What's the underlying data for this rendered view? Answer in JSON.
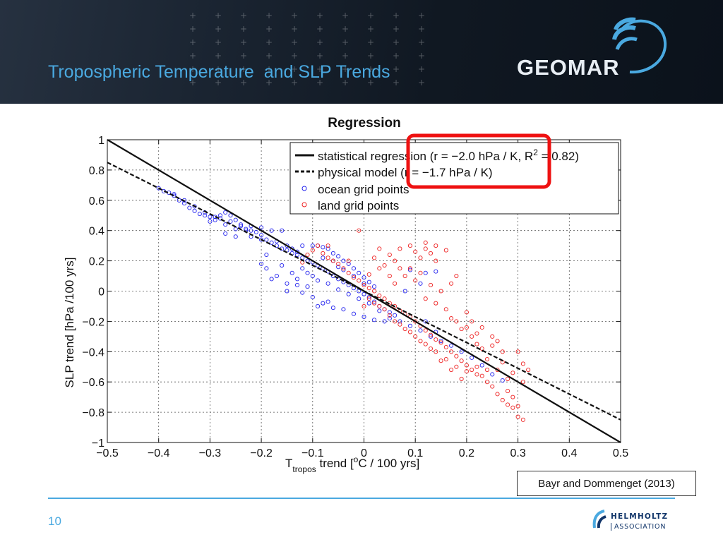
{
  "slide": {
    "title": "Tropospheric Temperature  and SLP Trends",
    "page_number": "10",
    "citation": "Bayr and Dommenget (2013)",
    "logo_text": "GEOMAR",
    "footer_logo": {
      "name": "HELMHOLTZ",
      "sub": "ASSOCIATION"
    },
    "colors": {
      "title": "#4aa9e0",
      "header_bg": "#121b26",
      "highlight": "#ee1111",
      "ocean": "#2222ee",
      "land": "#ee2222"
    }
  },
  "chart_data": {
    "type": "scatter",
    "title": "Regression",
    "xlabel_main": "T",
    "xlabel_sub": "tropos",
    "xlabel_rest": " trend [",
    "xlabel_sup": "o",
    "xlabel_end": "C / 100 yrs]",
    "ylabel": "SLP trend [hPa /100 yrs]",
    "xlim": [
      -0.5,
      0.5
    ],
    "ylim": [
      -1,
      1
    ],
    "xticks": [
      -0.5,
      -0.4,
      -0.3,
      -0.2,
      -0.1,
      0,
      0.1,
      0.2,
      0.3,
      0.4,
      0.5
    ],
    "yticks": [
      -1,
      -0.8,
      -0.6,
      -0.4,
      -0.2,
      0,
      0.2,
      0.4,
      0.6,
      0.8,
      1
    ],
    "xtick_labels": [
      "−0.5",
      "−0.4",
      "−0.3",
      "−0.2",
      "−0.1",
      "0",
      "0.1",
      "0.2",
      "0.3",
      "0.4",
      "0.5"
    ],
    "ytick_labels": [
      "−1",
      "−0.8",
      "−0.6",
      "−0.4",
      "−0.2",
      "0",
      "0.2",
      "0.4",
      "0.6",
      "0.8",
      "1"
    ],
    "grid": true,
    "lines": [
      {
        "name": "statistical regression",
        "slope": -2.0,
        "intercept": 0.0,
        "style": "solid"
      },
      {
        "name": "physical model",
        "slope": -1.7,
        "intercept": 0.0,
        "style": "dashed"
      }
    ],
    "legend": {
      "position": "top-right",
      "entries": [
        {
          "text": "statistical regression (r = −2.0 hPa / K, R",
          "sup": "2",
          "text_end": " = 0.82)",
          "kind": "solid-line"
        },
        {
          "text": "physical model (r = −1.7 hPa / K)",
          "kind": "dashed-line"
        },
        {
          "text": "ocean grid points",
          "kind": "ocean-marker"
        },
        {
          "text": "land grid points",
          "kind": "land-marker"
        }
      ]
    },
    "highlight": "red box around slope values r = −2.0 hPa / K and r = −1.7 hPa / K",
    "series": [
      {
        "name": "ocean grid points",
        "color": "#2222ee",
        "points": [
          [
            -0.4,
            0.68
          ],
          [
            -0.39,
            0.66
          ],
          [
            -0.38,
            0.65
          ],
          [
            -0.37,
            0.63
          ],
          [
            -0.36,
            0.6
          ],
          [
            -0.35,
            0.58
          ],
          [
            -0.34,
            0.55
          ],
          [
            -0.33,
            0.53
          ],
          [
            -0.32,
            0.51
          ],
          [
            -0.31,
            0.5
          ],
          [
            -0.3,
            0.49
          ],
          [
            -0.29,
            0.49
          ],
          [
            -0.28,
            0.5
          ],
          [
            -0.27,
            0.52
          ],
          [
            -0.26,
            0.5
          ],
          [
            -0.25,
            0.47
          ],
          [
            -0.24,
            0.44
          ],
          [
            -0.23,
            0.41
          ],
          [
            -0.22,
            0.4
          ],
          [
            -0.21,
            0.39
          ],
          [
            -0.2,
            0.37
          ],
          [
            -0.19,
            0.34
          ],
          [
            -0.18,
            0.32
          ],
          [
            -0.17,
            0.3
          ],
          [
            -0.16,
            0.28
          ],
          [
            -0.15,
            0.27
          ],
          [
            -0.14,
            0.25
          ],
          [
            -0.13,
            0.24
          ],
          [
            -0.12,
            0.22
          ],
          [
            -0.11,
            0.2
          ],
          [
            -0.1,
            0.19
          ],
          [
            -0.09,
            0.17
          ],
          [
            -0.08,
            0.15
          ],
          [
            -0.07,
            0.13
          ],
          [
            -0.06,
            0.1
          ],
          [
            -0.05,
            0.08
          ],
          [
            -0.04,
            0.06
          ],
          [
            -0.03,
            0.04
          ],
          [
            -0.02,
            0.02
          ],
          [
            -0.01,
            0.0
          ],
          [
            0.0,
            -0.02
          ],
          [
            0.01,
            -0.04
          ],
          [
            0.02,
            -0.07
          ],
          [
            0.03,
            -0.1
          ],
          [
            0.04,
            -0.12
          ],
          [
            0.05,
            -0.14
          ],
          [
            0.06,
            -0.16
          ],
          [
            -0.37,
            0.64
          ],
          [
            -0.35,
            0.6
          ],
          [
            -0.33,
            0.56
          ],
          [
            -0.31,
            0.52
          ],
          [
            -0.29,
            0.47
          ],
          [
            -0.27,
            0.44
          ],
          [
            -0.25,
            0.41
          ],
          [
            -0.23,
            0.4
          ],
          [
            -0.3,
            0.46
          ],
          [
            -0.28,
            0.48
          ],
          [
            -0.26,
            0.46
          ],
          [
            -0.24,
            0.43
          ],
          [
            -0.22,
            0.43
          ],
          [
            -0.2,
            0.42
          ],
          [
            -0.18,
            0.4
          ],
          [
            -0.16,
            0.4
          ],
          [
            -0.27,
            0.38
          ],
          [
            -0.25,
            0.36
          ],
          [
            -0.22,
            0.36
          ],
          [
            -0.2,
            0.34
          ],
          [
            -0.19,
            0.24
          ],
          [
            -0.2,
            0.18
          ],
          [
            -0.19,
            0.15
          ],
          [
            -0.18,
            0.08
          ],
          [
            -0.17,
            0.1
          ],
          [
            -0.15,
            0.05
          ],
          [
            -0.13,
            0.04
          ],
          [
            -0.11,
            0.03
          ],
          [
            -0.15,
            0.0
          ],
          [
            -0.12,
            -0.01
          ],
          [
            -0.1,
            -0.04
          ],
          [
            -0.08,
            -0.08
          ],
          [
            -0.06,
            -0.11
          ],
          [
            -0.04,
            -0.12
          ],
          [
            -0.02,
            -0.15
          ],
          [
            0.0,
            -0.17
          ],
          [
            0.02,
            -0.19
          ],
          [
            0.04,
            -0.2
          ],
          [
            -0.09,
            -0.1
          ],
          [
            -0.07,
            -0.07
          ],
          [
            -0.1,
            0.3
          ],
          [
            -0.09,
            0.3
          ],
          [
            -0.08,
            0.29
          ],
          [
            -0.07,
            0.28
          ],
          [
            -0.06,
            0.25
          ],
          [
            -0.05,
            0.23
          ],
          [
            -0.04,
            0.2
          ],
          [
            -0.03,
            0.18
          ],
          [
            -0.02,
            0.15
          ],
          [
            -0.01,
            0.12
          ],
          [
            0.0,
            0.09
          ],
          [
            0.01,
            0.06
          ],
          [
            0.02,
            0.03
          ],
          [
            -0.08,
            0.22
          ],
          [
            -0.06,
            0.2
          ],
          [
            -0.05,
            0.16
          ],
          [
            -0.12,
            0.15
          ],
          [
            -0.11,
            0.12
          ],
          [
            -0.1,
            0.1
          ],
          [
            -0.09,
            0.07
          ],
          [
            -0.07,
            0.05
          ],
          [
            -0.05,
            0.01
          ],
          [
            -0.03,
            -0.02
          ],
          [
            -0.01,
            -0.05
          ],
          [
            0.01,
            -0.08
          ],
          [
            0.03,
            -0.13
          ],
          [
            0.05,
            -0.18
          ],
          [
            0.07,
            -0.2
          ],
          [
            0.09,
            -0.23
          ],
          [
            0.11,
            -0.26
          ],
          [
            0.13,
            -0.3
          ],
          [
            0.15,
            -0.33
          ],
          [
            0.17,
            -0.36
          ],
          [
            0.19,
            -0.4
          ],
          [
            0.21,
            -0.44
          ],
          [
            0.23,
            -0.49
          ],
          [
            0.25,
            -0.55
          ],
          [
            0.27,
            -0.59
          ],
          [
            0.12,
            -0.2
          ],
          [
            0.14,
            -0.27
          ],
          [
            -0.14,
            0.28
          ],
          [
            -0.13,
            0.26
          ],
          [
            -0.15,
            0.3
          ],
          [
            -0.17,
            0.33
          ],
          [
            -0.12,
            0.3
          ],
          [
            -0.04,
            0.14
          ],
          [
            -0.02,
            0.1
          ],
          [
            0.0,
            0.05
          ],
          [
            0.12,
            0.12
          ],
          [
            0.14,
            0.13
          ],
          [
            0.09,
            0.14
          ],
          [
            0.11,
            0.05
          ],
          [
            0.08,
            0.0
          ],
          [
            -0.16,
            0.17
          ],
          [
            -0.14,
            0.12
          ],
          [
            -0.13,
            0.08
          ]
        ]
      },
      {
        "name": "land grid points",
        "color": "#ee2222",
        "points": [
          [
            -0.1,
            0.27
          ],
          [
            -0.09,
            0.3
          ],
          [
            -0.08,
            0.25
          ],
          [
            -0.07,
            0.22
          ],
          [
            -0.06,
            0.2
          ],
          [
            -0.05,
            0.18
          ],
          [
            -0.04,
            0.15
          ],
          [
            -0.03,
            0.12
          ],
          [
            -0.02,
            0.09
          ],
          [
            -0.01,
            0.07
          ],
          [
            0.0,
            0.04
          ],
          [
            0.01,
            0.02
          ],
          [
            0.02,
            0.0
          ],
          [
            0.03,
            -0.03
          ],
          [
            0.04,
            -0.05
          ],
          [
            0.05,
            -0.08
          ],
          [
            0.06,
            -0.1
          ],
          [
            0.07,
            -0.13
          ],
          [
            0.08,
            -0.15
          ],
          [
            0.09,
            -0.17
          ],
          [
            0.1,
            -0.2
          ],
          [
            0.11,
            -0.23
          ],
          [
            0.12,
            -0.26
          ],
          [
            0.13,
            -0.29
          ],
          [
            0.14,
            -0.32
          ],
          [
            0.15,
            -0.34
          ],
          [
            0.16,
            -0.37
          ],
          [
            0.17,
            -0.4
          ],
          [
            0.18,
            -0.43
          ],
          [
            0.19,
            -0.46
          ],
          [
            0.2,
            -0.49
          ],
          [
            0.21,
            -0.52
          ],
          [
            0.22,
            -0.55
          ],
          [
            0.23,
            -0.56
          ],
          [
            0.24,
            -0.6
          ],
          [
            0.25,
            -0.63
          ],
          [
            0.26,
            -0.68
          ],
          [
            0.27,
            -0.72
          ],
          [
            0.28,
            -0.75
          ],
          [
            0.29,
            -0.77
          ],
          [
            0.3,
            -0.83
          ],
          [
            0.3,
            -0.76
          ],
          [
            0.29,
            -0.7
          ],
          [
            0.28,
            -0.66
          ],
          [
            0.31,
            -0.85
          ],
          [
            0.3,
            -0.4
          ],
          [
            0.31,
            -0.48
          ],
          [
            0.26,
            -0.33
          ],
          [
            0.25,
            -0.3
          ],
          [
            0.22,
            -0.28
          ],
          [
            0.2,
            -0.24
          ],
          [
            0.18,
            -0.2
          ],
          [
            0.22,
            -0.35
          ],
          [
            0.24,
            -0.45
          ],
          [
            0.26,
            -0.52
          ],
          [
            0.28,
            -0.58
          ],
          [
            0.32,
            -0.52
          ],
          [
            0.31,
            -0.6
          ],
          [
            0.29,
            -0.54
          ],
          [
            0.27,
            -0.47
          ],
          [
            0.23,
            -0.38
          ],
          [
            0.21,
            -0.3
          ],
          [
            0.19,
            -0.25
          ],
          [
            0.17,
            -0.18
          ],
          [
            0.09,
            0.3
          ],
          [
            0.1,
            0.26
          ],
          [
            0.11,
            0.22
          ],
          [
            0.12,
            0.28
          ],
          [
            0.13,
            0.25
          ],
          [
            0.14,
            0.2
          ],
          [
            0.07,
            0.28
          ],
          [
            0.05,
            0.24
          ],
          [
            0.06,
            0.2
          ],
          [
            0.04,
            0.17
          ],
          [
            0.02,
            0.22
          ],
          [
            0.03,
            0.28
          ],
          [
            0.12,
            0.32
          ],
          [
            0.14,
            0.3
          ],
          [
            0.16,
            0.27
          ],
          [
            0.18,
            0.1
          ],
          [
            0.17,
            0.05
          ],
          [
            0.15,
            0.0
          ],
          [
            0.13,
            0.04
          ],
          [
            0.11,
            0.12
          ],
          [
            0.09,
            0.15
          ],
          [
            0.08,
            0.1
          ],
          [
            0.06,
            0.05
          ],
          [
            0.1,
            0.07
          ],
          [
            -0.12,
            0.19
          ],
          [
            -0.11,
            0.24
          ],
          [
            -0.07,
            0.3
          ],
          [
            -0.03,
            0.2
          ],
          [
            -0.01,
            0.4
          ],
          [
            0.01,
            0.11
          ],
          [
            0.03,
            0.15
          ],
          [
            0.05,
            0.1
          ],
          [
            0.07,
            0.15
          ],
          [
            0.0,
            -0.1
          ],
          [
            0.02,
            -0.08
          ],
          [
            0.04,
            -0.12
          ],
          [
            0.06,
            -0.2
          ],
          [
            0.08,
            -0.25
          ],
          [
            0.1,
            -0.3
          ],
          [
            0.12,
            -0.35
          ],
          [
            0.14,
            -0.4
          ],
          [
            0.16,
            -0.45
          ],
          [
            0.18,
            -0.5
          ],
          [
            0.2,
            -0.53
          ],
          [
            0.22,
            -0.5
          ],
          [
            0.24,
            -0.52
          ],
          [
            0.19,
            -0.58
          ],
          [
            0.17,
            -0.52
          ],
          [
            0.15,
            -0.46
          ],
          [
            0.13,
            -0.38
          ],
          [
            0.11,
            -0.33
          ],
          [
            0.09,
            -0.27
          ],
          [
            0.07,
            -0.22
          ],
          [
            0.05,
            -0.16
          ],
          [
            0.03,
            -0.1
          ],
          [
            0.01,
            -0.05
          ],
          [
            0.25,
            -0.36
          ],
          [
            0.27,
            -0.4
          ],
          [
            0.21,
            -0.2
          ],
          [
            0.23,
            -0.24
          ],
          [
            0.2,
            -0.14
          ],
          [
            0.16,
            -0.12
          ],
          [
            0.14,
            -0.08
          ],
          [
            0.12,
            -0.05
          ]
        ]
      }
    ]
  }
}
